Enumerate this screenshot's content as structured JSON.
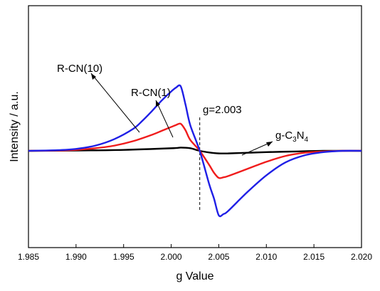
{
  "chart_data": {
    "type": "line",
    "xlabel": "g Value",
    "ylabel": "Intensity / a.u.",
    "xlim": [
      1.985,
      2.02
    ],
    "ylim": [
      -1.5,
      2.25
    ],
    "x_ticks": [
      "1.985",
      "1.990",
      "1.995",
      "2.000",
      "2.005",
      "2.010",
      "2.015",
      "2.020"
    ],
    "y_ticks_visible": false,
    "grid": false,
    "legend": "none",
    "series": [
      {
        "name": "R-CN(10)",
        "color": "#1f1fe6",
        "x": [
          1.985,
          1.988,
          1.99,
          1.992,
          1.994,
          1.996,
          1.997,
          1.998,
          1.999,
          2.0,
          2.0005,
          2.001,
          2.0015,
          2.002,
          2.003,
          2.004,
          2.0045,
          2.005,
          2.0055,
          2.006,
          2.008,
          2.01,
          2.012,
          2.014,
          2.016,
          2.018,
          2.02
        ],
        "y": [
          0,
          0.01,
          0.03,
          0.08,
          0.18,
          0.34,
          0.47,
          0.62,
          0.78,
          0.92,
          0.98,
          1.0,
          0.72,
          0.4,
          0,
          -0.52,
          -0.74,
          -1.0,
          -0.98,
          -0.93,
          -0.64,
          -0.38,
          -0.18,
          -0.07,
          -0.02,
          0,
          0
        ]
      },
      {
        "name": "R-CN(1)",
        "color": "#f01c1c",
        "x": [
          1.985,
          1.988,
          1.99,
          1.992,
          1.994,
          1.996,
          1.998,
          1.999,
          2.0,
          2.0005,
          2.001,
          2.0015,
          2.002,
          2.003,
          2.004,
          2.0045,
          2.005,
          2.0055,
          2.006,
          2.008,
          2.01,
          2.012,
          2.014,
          2.016,
          2.018,
          2.02
        ],
        "y": [
          0,
          0.005,
          0.015,
          0.04,
          0.08,
          0.15,
          0.25,
          0.31,
          0.37,
          0.4,
          0.42,
          0.32,
          0.17,
          0,
          -0.22,
          -0.34,
          -0.42,
          -0.41,
          -0.39,
          -0.28,
          -0.17,
          -0.08,
          -0.03,
          -0.01,
          0,
          0
        ]
      },
      {
        "name": "g-C3N4",
        "color": "#000000",
        "x": [
          1.985,
          1.99,
          1.995,
          2.0,
          2.001,
          2.002,
          2.003,
          2.004,
          2.005,
          2.006,
          2.008,
          2.01,
          2.013,
          2.016,
          2.02
        ],
        "y": [
          0,
          0.005,
          0.015,
          0.04,
          0.05,
          0.04,
          0,
          -0.025,
          -0.04,
          -0.04,
          -0.03,
          -0.02,
          -0.01,
          0,
          0
        ]
      }
    ],
    "annotations": {
      "rcn10": {
        "text": "R-CN(10)"
      },
      "rcn1": {
        "text": "R-CN(1)"
      },
      "gc3n4": {
        "text_g": "g-C",
        "sub1": "3",
        "text_n": "N",
        "sub2": "4"
      },
      "gvalue": {
        "text": "g=2.003",
        "x": 2.003
      }
    }
  }
}
